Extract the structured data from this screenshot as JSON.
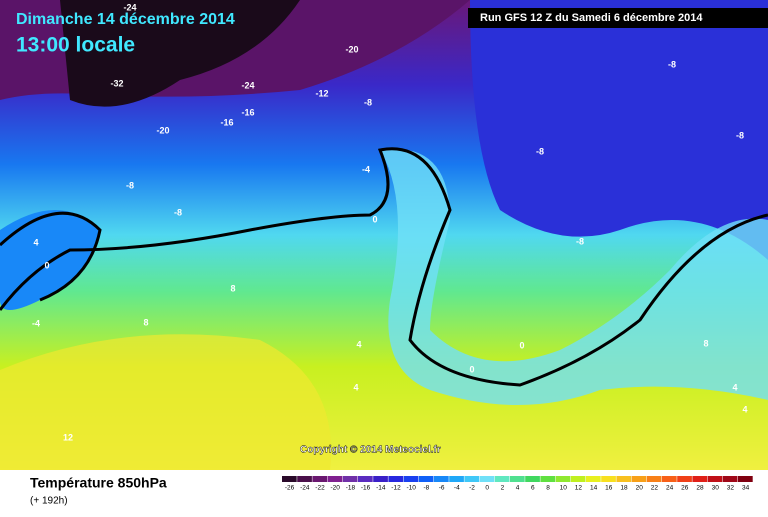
{
  "header": {
    "date": "Dimanche 14 décembre 2014",
    "time": "13:00 locale",
    "run": "Run GFS 12 Z du Samedi 6 décembre 2014"
  },
  "copyright": "Copyright © 2014 Meteociel.fr",
  "footer": {
    "title": "Température 850hPa",
    "subtitle": "(+ 192h)"
  },
  "contour_labels": [
    "-24",
    "-20",
    "-32",
    "-24",
    "-12",
    "-8",
    "-16",
    "-16",
    "-20",
    "-8",
    "-8",
    "-4",
    "0",
    "4",
    "0",
    "-4",
    "8",
    "8",
    "4",
    "4",
    "12",
    "-8",
    "-8",
    "-8",
    "-8",
    "8",
    "4",
    "4",
    "0",
    "0"
  ],
  "scale": {
    "labels": [
      -26,
      -24,
      -22,
      -20,
      -18,
      -16,
      -14,
      -12,
      -10,
      -8,
      -6,
      -4,
      -2,
      0,
      2,
      4,
      6,
      8,
      10,
      12,
      14,
      16,
      18,
      20,
      22,
      24,
      26,
      28,
      30,
      32,
      34
    ],
    "colors": [
      "#2a0a2a",
      "#4a0f4a",
      "#6a1870",
      "#802090",
      "#7030a8",
      "#5a2cc0",
      "#3a20c8",
      "#2828e0",
      "#1a40f0",
      "#1060f8",
      "#1888f8",
      "#20a8f8",
      "#40c8f8",
      "#70e0f8",
      "#60e8c0",
      "#50e090",
      "#40d860",
      "#60e040",
      "#90e830",
      "#c0f020",
      "#e8f020",
      "#f8e020",
      "#f8c020",
      "#f8a018",
      "#f88018",
      "#f86018",
      "#f04018",
      "#e02018",
      "#c01018",
      "#a00818",
      "#800010"
    ]
  }
}
